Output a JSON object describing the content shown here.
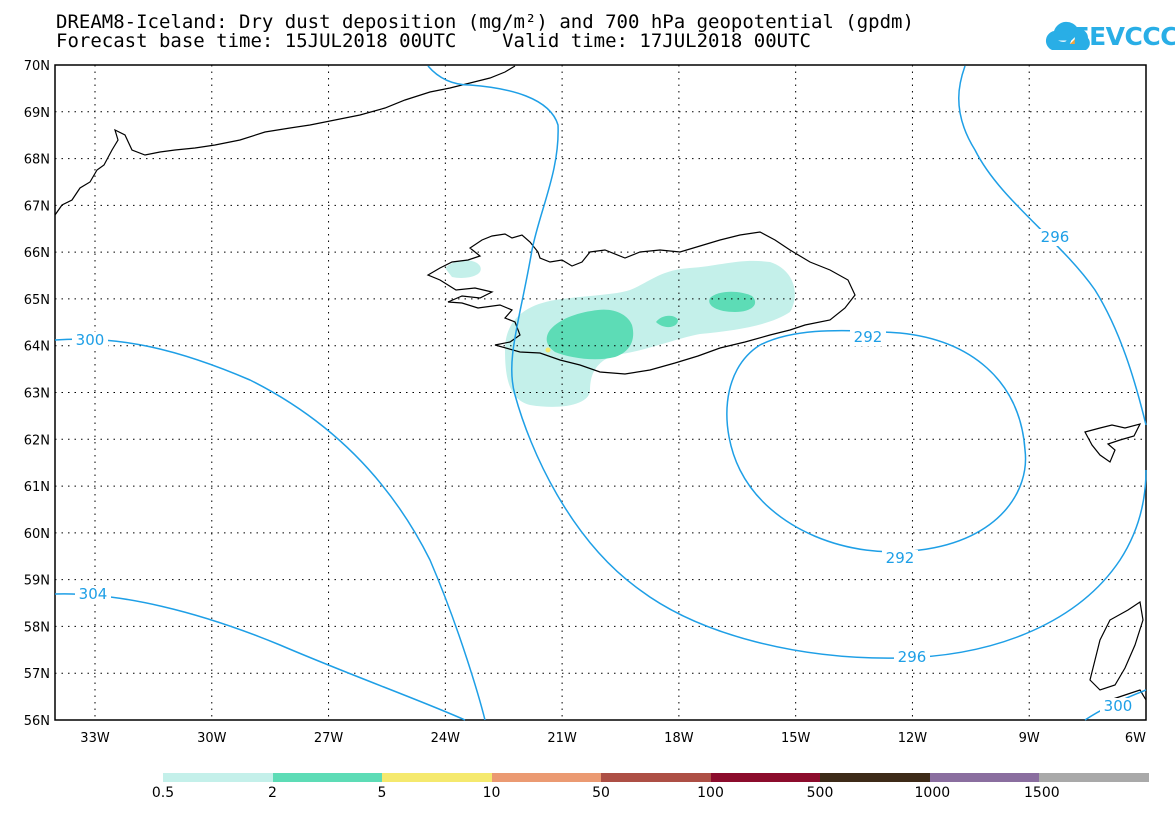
{
  "title_line1": "DREAM8-Iceland: Dry dust deposition (mg/m²) and 700 hPa geopotential (gpdm)",
  "title_line2": "Forecast base time: 15JUL2018 00UTC    Valid time: 17JUL2018 00UTC",
  "logo_text": "SEEVCCC",
  "lat_labels": [
    "70N",
    "69N",
    "68N",
    "67N",
    "66N",
    "65N",
    "64N",
    "63N",
    "62N",
    "61N",
    "60N",
    "59N",
    "58N",
    "57N",
    "56N"
  ],
  "lon_labels": [
    "33W",
    "30W",
    "27W",
    "24W",
    "21W",
    "18W",
    "15W",
    "12W",
    "9W",
    "6W"
  ],
  "contour_labels": [
    "300",
    "304",
    "292",
    "292",
    "296",
    "296",
    "300"
  ],
  "legend": {
    "colors": [
      "#c4f0ea",
      "#5ddcb6",
      "#f5e96e",
      "#eb9a72",
      "#ad4f45",
      "#8c0c2c",
      "#3d2a18",
      "#8a6e9f",
      "#a9a9a9"
    ],
    "labels": [
      "0.5",
      "2",
      "5",
      "10",
      "50",
      "100",
      "500",
      "1000",
      "1500"
    ]
  },
  "colors": {
    "contour": "#1e9fe6",
    "land": "#000000"
  }
}
